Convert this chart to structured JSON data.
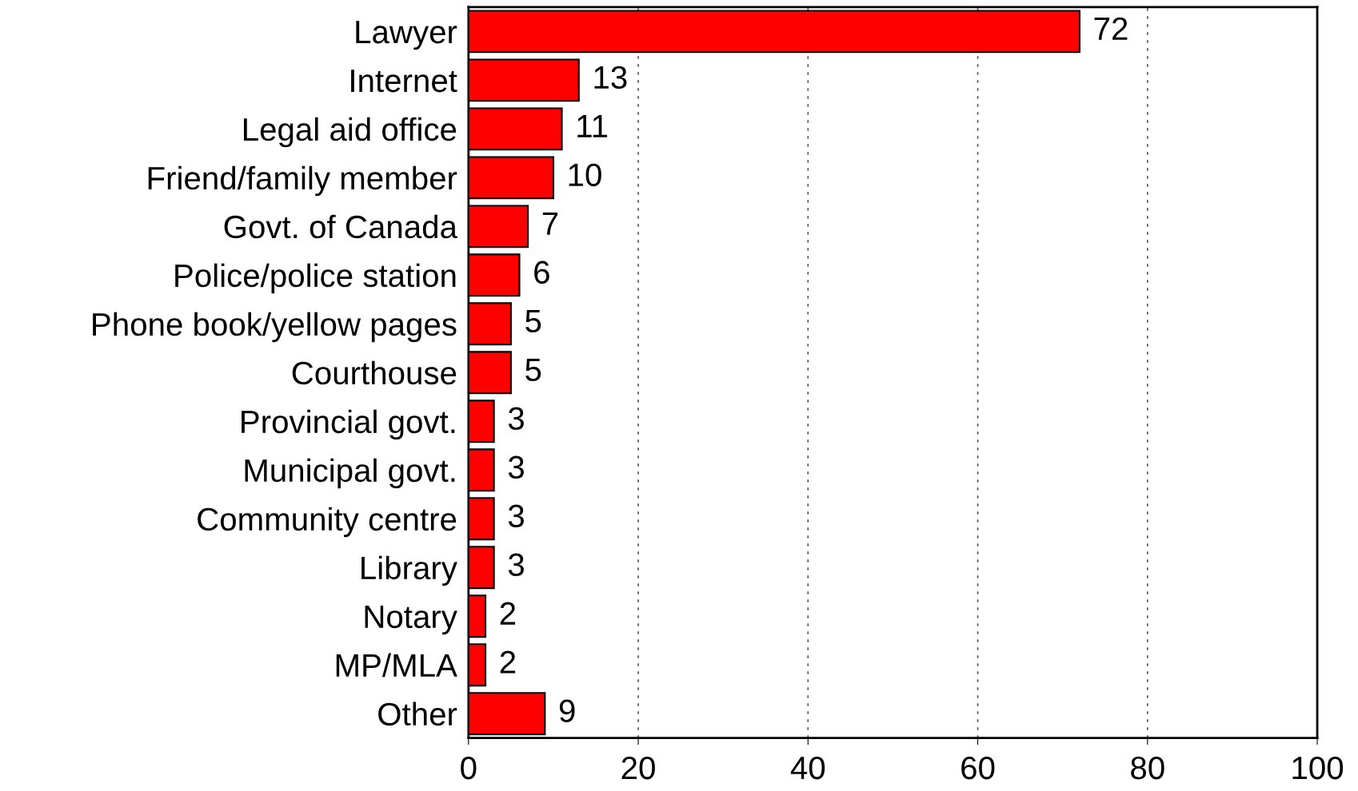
{
  "chart_data": {
    "type": "bar",
    "orientation": "horizontal",
    "categories": [
      "Lawyer",
      "Internet",
      "Legal aid office",
      "Friend/family member",
      "Govt. of Canada",
      "Police/police station",
      "Phone book/yellow pages",
      "Courthouse",
      "Provincial govt.",
      "Municipal govt.",
      "Community centre",
      "Library",
      "Notary",
      "MP/MLA",
      "Other"
    ],
    "values": [
      72,
      13,
      11,
      10,
      7,
      6,
      5,
      5,
      3,
      3,
      3,
      3,
      2,
      2,
      9
    ],
    "color": "#ff0000",
    "xlim": [
      0,
      100
    ],
    "xticks": [
      0,
      20,
      40,
      60,
      80,
      100
    ],
    "grid": "x",
    "data_labels": true
  }
}
